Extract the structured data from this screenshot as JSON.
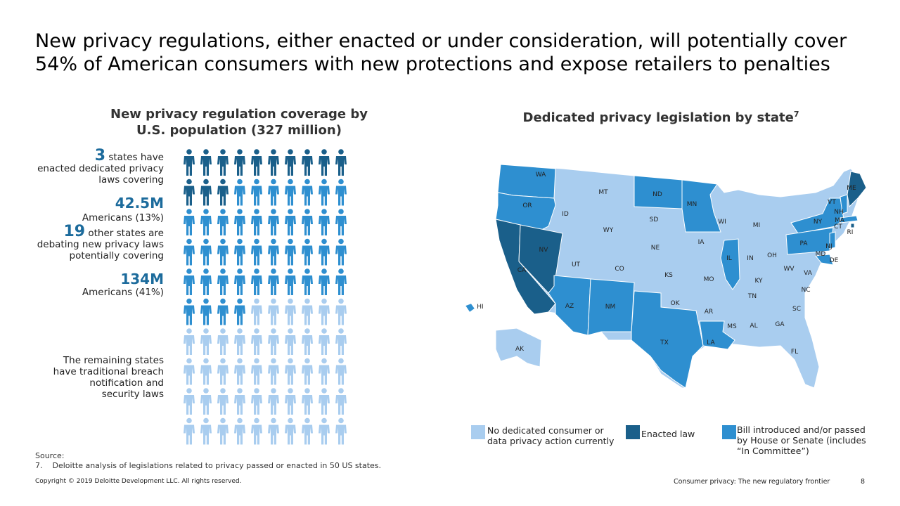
{
  "title": "New privacy regulations, either enacted or under consideration, will potentially cover 54% of American consumers with new protections and expose retailers to penalties",
  "left": {
    "title_line1": "New privacy regulation coverage by",
    "title_line2": "U.S. population (327 million)",
    "enacted_count": "3",
    "enacted_text1": "states have",
    "enacted_text2": "enacted dedicated privacy",
    "enacted_text3": "laws covering",
    "enacted_pop": "42.5M",
    "enacted_pop_text": "Americans (13%)",
    "debating_count": "19",
    "debating_text1": "other states are",
    "debating_text2": "debating new privacy laws",
    "debating_text3": "potentially covering",
    "debating_pop": "134M",
    "debating_pop_text": "Americans (41%)",
    "remaining_1": "The remaining states",
    "remaining_2": "have traditional breach",
    "remaining_3": "notification and",
    "remaining_4": "security laws"
  },
  "pictogram": {
    "total_icons": 100,
    "enacted_icons": 13,
    "debating_icons": 41,
    "colors": {
      "enacted": "#1a5f8a",
      "debating": "#2e8fd0",
      "none": "#a9cdef"
    }
  },
  "right": {
    "title": "Dedicated privacy legislation by state",
    "title_sup": "7"
  },
  "map": {
    "colors": {
      "none": "#a9cdef",
      "enacted": "#1a5f8a",
      "bill": "#2e8fd0"
    },
    "state_labels": [
      "WA",
      "OR",
      "CA",
      "NV",
      "ID",
      "MT",
      "WY",
      "UT",
      "AZ",
      "CO",
      "NM",
      "ND",
      "SD",
      "NE",
      "KS",
      "OK",
      "TX",
      "MN",
      "IA",
      "MO",
      "AR",
      "LA",
      "WI",
      "IL",
      "MI",
      "IN",
      "OH",
      "KY",
      "TN",
      "MS",
      "AL",
      "GA",
      "FL",
      "SC",
      "NC",
      "VA",
      "WV",
      "PA",
      "NY",
      "VT",
      "NH",
      "ME",
      "MA",
      "CT",
      "RI",
      "NJ",
      "DE",
      "MD",
      "AK",
      "HI"
    ]
  },
  "legend": {
    "none_label_1": "No dedicated consumer or",
    "none_label_2": "data privacy action currently",
    "enacted_label": "Enacted law",
    "bill_label_1": "Bill introduced and/or passed",
    "bill_label_2": "by House or Senate (includes",
    "bill_label_3": "“In Committee”)"
  },
  "source": {
    "heading": "Source:",
    "note_num": "7.",
    "note_text": "Deloitte analysis of legislations related to privacy passed or enacted in 50 US states."
  },
  "footer": {
    "copyright": "Copyright © 2019 Deloitte Development LLC. All rights reserved.",
    "deck_title": "Consumer privacy: The new regulatory frontier",
    "page": "8"
  }
}
